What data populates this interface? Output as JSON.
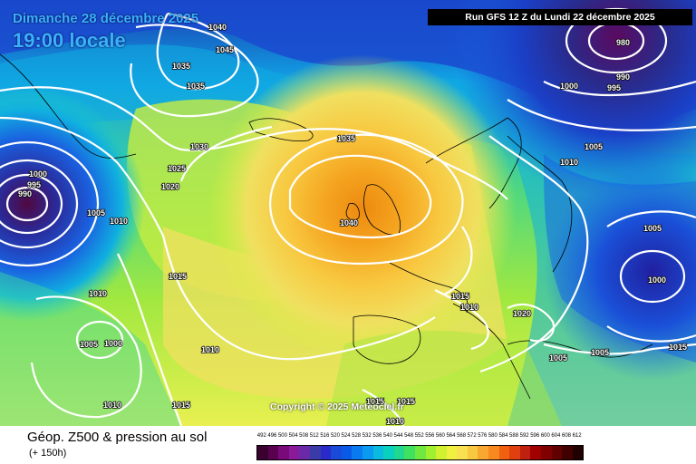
{
  "header": {
    "date": "Dimanche 28 décembre 2025",
    "time": "19:00 locale",
    "run": "Run GFS 12 Z du Lundi 22 décembre 2025"
  },
  "copyright": "Copyright © 2025 Meteociel.fr",
  "footer": {
    "title": "Géop. Z500 & pression au sol",
    "subtitle": "(+ 150h)"
  },
  "scale": {
    "labels": [
      "492",
      "496",
      "500",
      "504",
      "508",
      "512",
      "516",
      "520",
      "524",
      "528",
      "532",
      "536",
      "540",
      "544",
      "548",
      "552",
      "556",
      "560",
      "564",
      "568",
      "572",
      "576",
      "580",
      "584",
      "588",
      "592",
      "596",
      "600",
      "604",
      "608",
      "612"
    ],
    "colors": [
      "#3a0030",
      "#5a0050",
      "#7a0a7a",
      "#8a1a9a",
      "#6a2aa8",
      "#3a3aa8",
      "#2a2ac8",
      "#1a4ad8",
      "#0a5ae8",
      "#0a7af0",
      "#0a9af0",
      "#0abae0",
      "#0ad0c0",
      "#20d890",
      "#40e060",
      "#70e840",
      "#a0f030",
      "#d0f030",
      "#f0f040",
      "#f8e050",
      "#f8c840",
      "#f8a830",
      "#f88820",
      "#f06010",
      "#e04010",
      "#c02010",
      "#a00000",
      "#800000",
      "#600000",
      "#400000",
      "#200000"
    ]
  },
  "isobar_labels": [
    {
      "text": "1040"
    },
    {
      "text": "1045"
    },
    {
      "text": "1035"
    },
    {
      "text": "1035"
    },
    {
      "text": "1030"
    },
    {
      "text": "1025"
    },
    {
      "text": "1020"
    },
    {
      "text": "1000"
    },
    {
      "text": "995"
    },
    {
      "text": "990"
    },
    {
      "text": "1005"
    },
    {
      "text": "1010"
    },
    {
      "text": "1015"
    },
    {
      "text": "1010"
    },
    {
      "text": "1005"
    },
    {
      "text": "1000"
    },
    {
      "text": "1010"
    },
    {
      "text": "1010"
    },
    {
      "text": "1015"
    },
    {
      "text": "1035"
    },
    {
      "text": "1040"
    },
    {
      "text": "980"
    },
    {
      "text": "990"
    },
    {
      "text": "995"
    },
    {
      "text": "1000"
    },
    {
      "text": "1005"
    },
    {
      "text": "1010"
    },
    {
      "text": "1005"
    },
    {
      "text": "1000"
    },
    {
      "text": "1015"
    },
    {
      "text": "1015"
    },
    {
      "text": "1010"
    },
    {
      "text": "1020"
    },
    {
      "text": "1005"
    },
    {
      "text": "1005"
    },
    {
      "text": "1015"
    },
    {
      "text": "1015"
    },
    {
      "text": "1010"
    }
  ]
}
